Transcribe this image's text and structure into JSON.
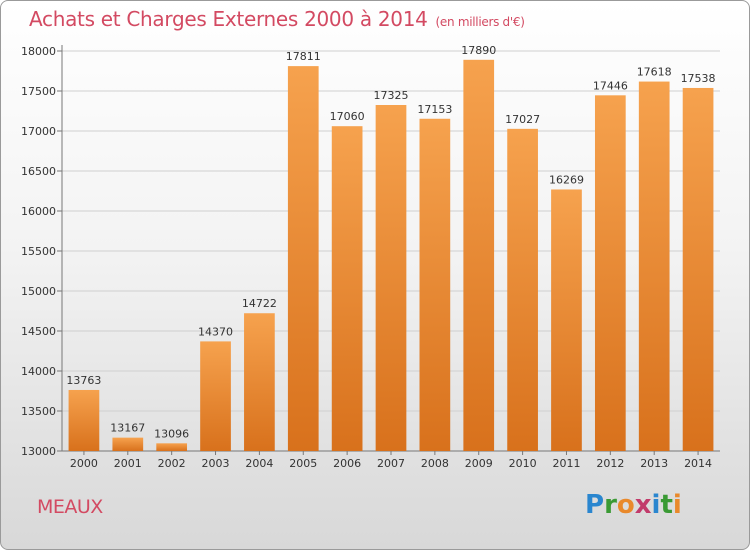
{
  "chart_data": {
    "type": "bar",
    "title": "Achats et Charges Externes 2000 à 2014",
    "subtitle": "(en milliers d'€)",
    "categories": [
      "2000",
      "2001",
      "2002",
      "2003",
      "2004",
      "2005",
      "2006",
      "2007",
      "2008",
      "2009",
      "2010",
      "2011",
      "2012",
      "2013",
      "2014"
    ],
    "values": [
      13763,
      13167,
      13096,
      14370,
      14722,
      17811,
      17060,
      17325,
      17153,
      17890,
      17027,
      16269,
      17446,
      17618,
      17538
    ],
    "ylim": [
      13000,
      18000
    ],
    "yticks": [
      "13000",
      "13500",
      "14000",
      "14500",
      "15000",
      "15500",
      "16000",
      "16500",
      "17000",
      "17500",
      "18000"
    ],
    "xlabel": "",
    "ylabel": "",
    "grid": true,
    "bar_color_light": "#f6a24e",
    "bar_color_dark": "#d8711c"
  },
  "city": "MEAUX",
  "logo": [
    "P",
    "r",
    "o",
    "x",
    "i",
    "t",
    "i"
  ]
}
